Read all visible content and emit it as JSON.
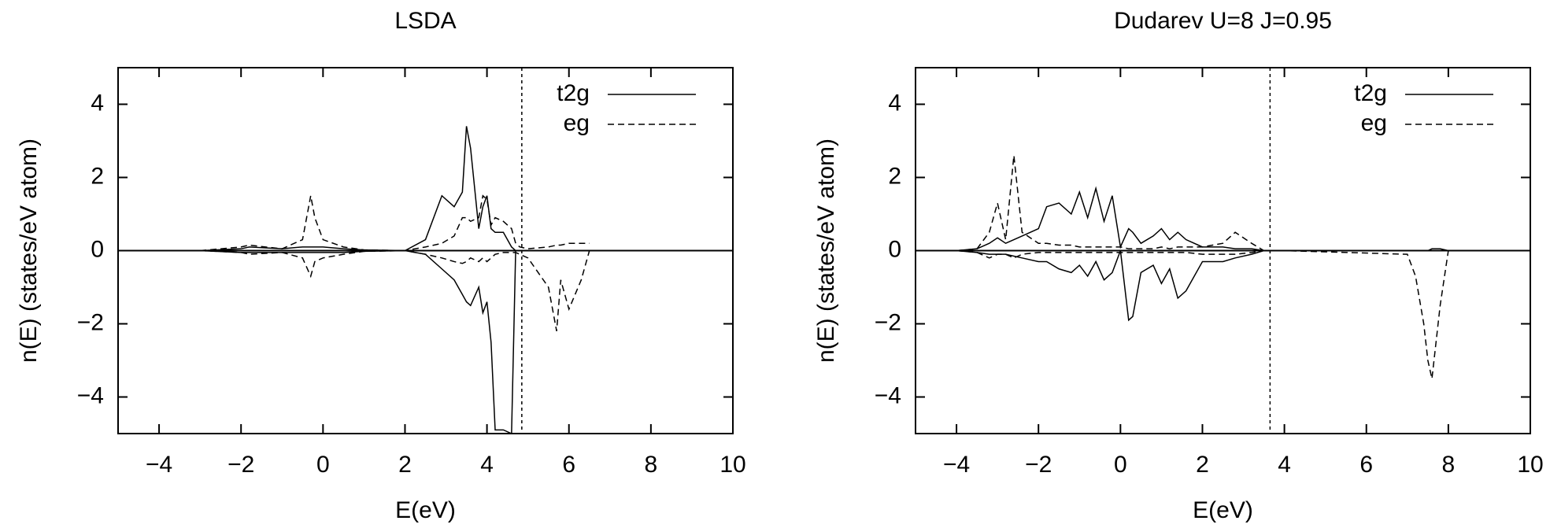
{
  "chart_data": [
    {
      "type": "line",
      "title": "LSDA",
      "xlabel": "E(eV)",
      "ylabel": "n(E) (states/eV atom)",
      "xlim": [
        -5,
        10
      ],
      "ylim": [
        -5,
        5
      ],
      "xticks": [
        {
          "value": -4,
          "label": "−4"
        },
        {
          "value": -2,
          "label": "−2"
        },
        0,
        2,
        4,
        6,
        8,
        10
      ],
      "yticks": [
        {
          "value": -4,
          "label": "−4"
        },
        {
          "value": -2,
          "label": "−2"
        },
        0,
        2,
        4
      ],
      "fermi": 4.85,
      "legend": "upper right",
      "x": [
        -3,
        -2,
        -1.8,
        -1,
        -0.5,
        -0.3,
        -0.2,
        0,
        0.5,
        1,
        2,
        2.5,
        2.9,
        3.2,
        3.4,
        3.5,
        3.6,
        3.8,
        3.9,
        4.0,
        4.1,
        4.2,
        4.4,
        4.6,
        4.7,
        4.8,
        5,
        5.5,
        5.7,
        5.8,
        6,
        6.3,
        6.5
      ],
      "series": [
        {
          "name": "t2g",
          "color": "#000",
          "dash": false,
          "values": [
            0,
            0.05,
            0.1,
            0.05,
            0.1,
            0.1,
            0.1,
            0.1,
            0.05,
            0.02,
            0,
            0.3,
            1.5,
            1.2,
            1.6,
            3.4,
            2.8,
            0.6,
            1.2,
            1.5,
            0.6,
            0.5,
            0.5,
            0.1,
            0,
            0,
            0,
            0,
            0,
            0,
            0,
            0,
            0
          ],
          "values_down": [
            0,
            -0.05,
            -0.05,
            -0.05,
            -0.05,
            -0.05,
            -0.05,
            -0.05,
            -0.05,
            -0.02,
            0,
            -0.1,
            -0.5,
            -0.8,
            -1.2,
            -1.4,
            -1.5,
            -1.0,
            -1.7,
            -1.4,
            -2.5,
            -4.9,
            -4.9,
            -5,
            0,
            0,
            0,
            0,
            0,
            0,
            0,
            0,
            0
          ]
        },
        {
          "name": "eg",
          "color": "#000",
          "dash": true,
          "values": [
            0,
            0.1,
            0.15,
            0.05,
            0.3,
            1.5,
            0.9,
            0.3,
            0.1,
            0.02,
            0,
            0.1,
            0.2,
            0.4,
            0.9,
            0.9,
            0.8,
            0.9,
            1.5,
            1.4,
            0.7,
            0.9,
            0.8,
            0.6,
            0.2,
            0.1,
            0.05,
            0.1,
            0.15,
            0.15,
            0.2,
            0.2,
            0.2
          ],
          "values_down": [
            0,
            -0.05,
            -0.1,
            -0.05,
            -0.2,
            -0.7,
            -0.3,
            -0.2,
            -0.1,
            -0.02,
            0,
            -0.1,
            -0.2,
            -0.3,
            -0.35,
            -0.3,
            -0.2,
            -0.3,
            -0.2,
            -0.3,
            -0.2,
            -0.1,
            -0.05,
            -0.05,
            -0.05,
            -0.1,
            -0.2,
            -1.0,
            -2.2,
            -0.8,
            -1.6,
            -0.8,
            0
          ]
        }
      ]
    },
    {
      "type": "line",
      "title": "Dudarev  U=8 J=0.95",
      "xlabel": "E(eV)",
      "ylabel": "n(E) (states/eV atom)",
      "xlim": [
        -5,
        10
      ],
      "ylim": [
        -5,
        5
      ],
      "xticks": [
        {
          "value": -4,
          "label": "−4"
        },
        {
          "value": -2,
          "label": "−2"
        },
        0,
        2,
        4,
        6,
        8,
        10
      ],
      "yticks": [
        {
          "value": -4,
          "label": "−4"
        },
        {
          "value": -2,
          "label": "−2"
        },
        0,
        2,
        4
      ],
      "fermi": 3.65,
      "legend": "upper right",
      "x": [
        -4,
        -3.5,
        -3.2,
        -3.0,
        -2.8,
        -2.6,
        -2.4,
        -2.0,
        -1.8,
        -1.5,
        -1.2,
        -1.0,
        -0.8,
        -0.6,
        -0.4,
        -0.2,
        0,
        0.2,
        0.3,
        0.5,
        0.8,
        1.0,
        1.2,
        1.4,
        1.6,
        2,
        2.5,
        2.8,
        3.2,
        3.5,
        4,
        7,
        7.2,
        7.4,
        7.5,
        7.6,
        7.8,
        8,
        9
      ],
      "series": [
        {
          "name": "t2g",
          "color": "#000",
          "dash": false,
          "values": [
            0,
            0.05,
            0.2,
            0.35,
            0.2,
            0.3,
            0.4,
            0.6,
            1.2,
            1.3,
            1.0,
            1.6,
            0.9,
            1.7,
            0.8,
            1.5,
            0.1,
            0.6,
            0.5,
            0.2,
            0.4,
            0.6,
            0.3,
            0.5,
            0.3,
            0.1,
            0.1,
            0.05,
            0.05,
            0,
            0,
            0,
            0,
            0,
            0,
            0.05,
            0.05,
            0,
            0
          ],
          "values_down": [
            0,
            -0.05,
            -0.1,
            -0.1,
            -0.1,
            -0.15,
            -0.2,
            -0.3,
            -0.3,
            -0.5,
            -0.6,
            -0.4,
            -0.7,
            -0.3,
            -0.8,
            -0.6,
            0,
            -1.9,
            -1.8,
            -0.6,
            -0.4,
            -0.9,
            -0.5,
            -1.3,
            -1.1,
            -0.3,
            -0.3,
            -0.2,
            -0.1,
            0,
            0,
            0,
            0,
            0,
            0,
            0,
            0,
            0,
            0
          ]
        },
        {
          "name": "eg",
          "color": "#000",
          "dash": true,
          "values": [
            0,
            0.05,
            0.5,
            1.3,
            0.3,
            2.6,
            0.5,
            0.2,
            0.2,
            0.15,
            0.15,
            0.1,
            0.1,
            0.1,
            0.1,
            0.1,
            0.1,
            0.05,
            0.05,
            0.05,
            0.05,
            0.1,
            0.05,
            0.1,
            0.1,
            0.1,
            0.2,
            0.5,
            0.2,
            0,
            0,
            0,
            0,
            0,
            0,
            0,
            0,
            0,
            0
          ],
          "values_down": [
            0,
            -0.05,
            -0.2,
            -0.1,
            -0.1,
            -0.2,
            -0.1,
            -0.05,
            -0.05,
            -0.05,
            -0.05,
            -0.05,
            -0.05,
            -0.05,
            -0.05,
            -0.05,
            -0.05,
            -0.05,
            -0.05,
            -0.05,
            -0.05,
            -0.05,
            -0.05,
            -0.05,
            -0.05,
            -0.1,
            -0.1,
            -0.1,
            -0.05,
            0,
            0,
            -0.1,
            -0.7,
            -2.0,
            -3.0,
            -3.5,
            -1.5,
            0,
            0
          ]
        }
      ]
    }
  ]
}
